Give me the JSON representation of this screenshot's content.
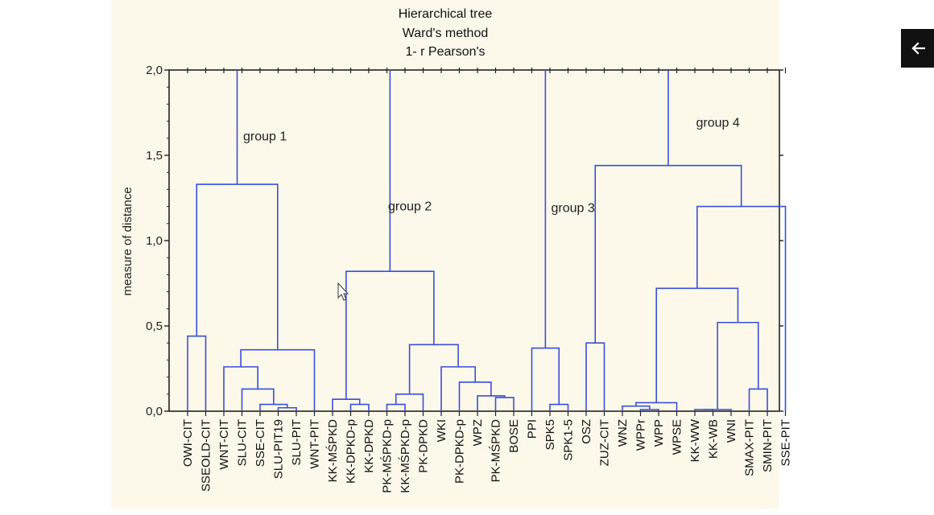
{
  "chart_data": {
    "type": "dendrogram",
    "title_lines": [
      "Hierarchical tree",
      "Ward's method",
      "1- r Pearson's"
    ],
    "ylabel": "measure of distance",
    "ylim": [
      0,
      2.0
    ],
    "y_ticks": [
      "0,0",
      "0,5",
      "1,0",
      "1,5",
      "2,0"
    ],
    "y_tick_values": [
      0,
      0.5,
      1.0,
      1.5,
      2.0
    ],
    "grid": false,
    "line_color": "#3b4fd6",
    "leaves": [
      "OWI-CIT",
      "SSEOLD-CIT",
      "WNT-CIT",
      "SLU-CIT",
      "SSE-CIT",
      "SLU-PIT19",
      "SLU-PIT",
      "WNT-PIT",
      "KK-MŚPKD",
      "KK-DPKD-p",
      "KK-DPKD",
      "PK-MŚPKD-p",
      "KK-MŚPKD-p",
      "PK-DPKD",
      "WKI",
      "PK-DPKD-p",
      "WPZ",
      "PK-MŚPKD",
      "BOSE",
      "PPI",
      "SPK5",
      "SPK1-5",
      "OSZ",
      "ZUZ-CIT",
      "WNZ",
      "WPPr",
      "WPP",
      "WPSE",
      "KK-WW",
      "KK-WB",
      "WNI",
      "SMAX-PIT",
      "SMIN-PIT",
      "SSE-PIT"
    ],
    "merges": [
      {
        "a": "OWI-CIT",
        "b": "SSEOLD-CIT",
        "height": 0.44
      },
      {
        "a": "SLU-PIT19",
        "b": "SLU-PIT",
        "height": 0.02
      },
      {
        "a": "SSE-CIT",
        "b": "SLU-PIT19+SLU-PIT",
        "height": 0.04
      },
      {
        "a": "SLU-CIT",
        "b": "SSE-CIT cluster",
        "height": 0.13
      },
      {
        "a": "WNT-CIT",
        "b": "SLU-CIT cluster",
        "height": 0.26
      },
      {
        "a": "WNT-CIT cluster",
        "b": "WNT-PIT",
        "height": 0.36
      },
      {
        "a": "OWI-CIT cluster",
        "b": "WNT cluster",
        "height": 1.33
      },
      {
        "a": "KK-DPKD-p",
        "b": "KK-DPKD",
        "height": 0.04
      },
      {
        "a": "KK-MŚPKD",
        "b": "KK-DPKD cluster",
        "height": 0.07
      },
      {
        "a": "PK-MŚPKD-p",
        "b": "KK-MŚPKD-p",
        "height": 0.04
      },
      {
        "a": "PK-MŚPKD-p cluster",
        "b": "PK-DPKD",
        "height": 0.1
      },
      {
        "a": "PK-MŚPKD",
        "b": "BOSE",
        "height": 0.08
      },
      {
        "a": "WPZ",
        "b": "PK-MŚPKD cluster",
        "height": 0.09
      },
      {
        "a": "PK-DPKD-p",
        "b": "WPZ cluster",
        "height": 0.17
      },
      {
        "a": "WKI",
        "b": "PK-DPKD-p cluster",
        "height": 0.26
      },
      {
        "a": "PK-DPKD cluster",
        "b": "WKI cluster",
        "height": 0.39
      },
      {
        "a": "KK-MŚPKD cluster",
        "b": "PK cluster",
        "height": 0.82
      },
      {
        "a": "SPK5",
        "b": "SPK1-5",
        "height": 0.04
      },
      {
        "a": "PPI",
        "b": "SPK cluster",
        "height": 0.37
      },
      {
        "a": "OSZ",
        "b": "ZUZ-CIT",
        "height": 0.4
      },
      {
        "a": "WPPr",
        "b": "WPP",
        "height": 0.01
      },
      {
        "a": "WNZ",
        "b": "WPPr cluster",
        "height": 0.03
      },
      {
        "a": "WNZ cluster",
        "b": "WPSE",
        "height": 0.05
      },
      {
        "a": "KK-WW",
        "b": "KK-WB",
        "height": 0.01
      },
      {
        "a": "SMAX-PIT",
        "b": "SMIN-PIT",
        "height": 0.13
      },
      {
        "a": "KK-WW cluster",
        "b": "SMAX-PIT cluster",
        "height": 0.52
      },
      {
        "a": "WNZ cluster",
        "b": "KK-WW cluster",
        "height": 0.72
      },
      {
        "a": "WNZ-KK cluster",
        "b": "SSE-PIT",
        "height": 1.2
      },
      {
        "a": "OSZ cluster",
        "b": "WNZ-SSE cluster",
        "height": 1.44
      }
    ],
    "annotations": [
      {
        "text": "group 1",
        "x_after_leaf": "WNT-CIT",
        "y": 1.61
      },
      {
        "text": "group 2",
        "x_after_leaf": "KK-DPKD",
        "y": 1.2
      },
      {
        "text": "group 3",
        "x_after_leaf": "PPI",
        "y": 1.19
      },
      {
        "text": "group 4",
        "x_after_leaf": "WPSE",
        "y": 1.69
      }
    ]
  },
  "ui": {
    "back_button_icon": "arrow-left-icon"
  }
}
